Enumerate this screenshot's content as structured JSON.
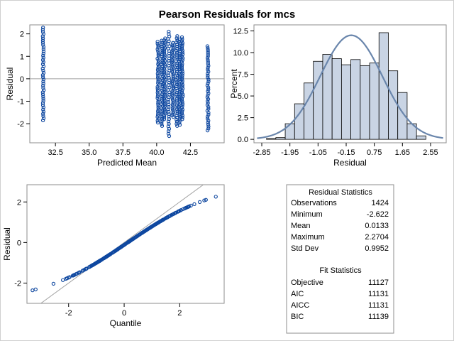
{
  "title": "Pearson Residuals for mcs",
  "colors": {
    "marker": "#0f48a0",
    "hist_fill": "#c9d4e4",
    "curve": "#6a86ac",
    "ref_line": "#a0a0a0"
  },
  "chart_data": [
    {
      "type": "scatter",
      "xlabel": "Predicted Mean",
      "ylabel": "Residual",
      "xlim": [
        30.6,
        45.0
      ],
      "ylim": [
        -2.85,
        2.4
      ],
      "xticks": [
        "32.5",
        "35.0",
        "37.5",
        "40.0",
        "42.5"
      ],
      "xtick_values": [
        32.5,
        35.0,
        37.5,
        40.0,
        42.5
      ],
      "yticks": [
        "2",
        "1",
        "0",
        "-1",
        "-2"
      ],
      "ytick_values": [
        2,
        1,
        0,
        -1,
        -2
      ],
      "reference_line_y": 0,
      "point_groups": [
        {
          "x": 31.6,
          "ymin": -1.85,
          "ymax": 2.28
        },
        {
          "x": 40.1,
          "ymin": -1.95,
          "ymax": 1.65
        },
        {
          "x": 40.4,
          "ymin": -2.1,
          "ymax": 1.7
        },
        {
          "x": 40.6,
          "ymin": -1.8,
          "ymax": 1.8
        },
        {
          "x": 40.9,
          "ymin": -2.55,
          "ymax": 2.1
        },
        {
          "x": 41.2,
          "ymin": -1.7,
          "ymax": 1.6
        },
        {
          "x": 41.5,
          "ymin": -2.1,
          "ymax": 1.9
        },
        {
          "x": 41.7,
          "ymin": -2.05,
          "ymax": 1.75
        },
        {
          "x": 41.9,
          "ymin": -1.8,
          "ymax": 1.85
        },
        {
          "x": 43.8,
          "ymin": -2.3,
          "ymax": 1.45
        }
      ]
    },
    {
      "type": "bar",
      "xlabel": "Residual",
      "ylabel": "Percent",
      "xlim": [
        -3.1,
        3.05
      ],
      "ylim": [
        -0.4,
        13.2
      ],
      "xticks": [
        "-2.85",
        "-1.95",
        "-1.05",
        "-0.15",
        "0.75",
        "1.65",
        "2.55"
      ],
      "xtick_values": [
        -2.85,
        -1.95,
        -1.05,
        -0.15,
        0.75,
        1.65,
        2.55
      ],
      "yticks": [
        "12.5",
        "10.0",
        "7.5",
        "5.0",
        "2.5",
        "0.0"
      ],
      "ytick_values": [
        12.5,
        10.0,
        7.5,
        5.0,
        2.5,
        0.0
      ],
      "bin_width": 0.3,
      "bin_centers": [
        -2.55,
        -2.25,
        -1.95,
        -1.65,
        -1.35,
        -1.05,
        -0.75,
        -0.45,
        -0.15,
        0.15,
        0.45,
        0.75,
        1.05,
        1.35,
        1.65,
        1.95,
        2.25
      ],
      "values": [
        0.1,
        0.2,
        1.8,
        4.1,
        6.5,
        9.0,
        9.8,
        9.3,
        8.6,
        9.2,
        8.5,
        8.8,
        12.3,
        7.9,
        5.4,
        1.8,
        0.4
      ],
      "normal_curve": {
        "mean": 0.0133,
        "sd": 0.9952,
        "peak_percent": 12.0
      }
    },
    {
      "type": "scatter",
      "xlabel": "Quantile",
      "ylabel": "Residual",
      "xlim": [
        -3.5,
        3.6
      ],
      "ylim": [
        -3.0,
        2.85
      ],
      "xticks": [
        "-2",
        "0",
        "2"
      ],
      "xtick_values": [
        -2,
        0,
        2
      ],
      "yticks": [
        "2",
        "0",
        "-2"
      ],
      "ytick_values": [
        2,
        0,
        -2
      ],
      "reference_line": "y = x"
    }
  ],
  "residual_statistics": {
    "title": "Residual Statistics",
    "rows": [
      {
        "label": "Observations",
        "value": "1424"
      },
      {
        "label": "Minimum",
        "value": "-2.622"
      },
      {
        "label": "Mean",
        "value": "0.0133"
      },
      {
        "label": "Maximum",
        "value": "2.2704"
      },
      {
        "label": "Std Dev",
        "value": "0.9952"
      }
    ]
  },
  "fit_statistics": {
    "title": "Fit Statistics",
    "rows": [
      {
        "label": "Objective",
        "value": "11127"
      },
      {
        "label": "AIC",
        "value": "11131"
      },
      {
        "label": "AICC",
        "value": "11131"
      },
      {
        "label": "BIC",
        "value": "11139"
      }
    ]
  }
}
